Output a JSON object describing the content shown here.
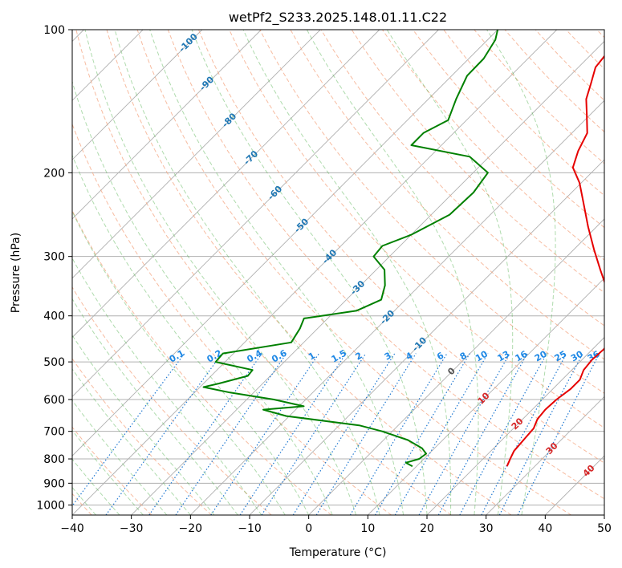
{
  "chart_data": {
    "type": "line",
    "subtype": "skew-t log-p diagram",
    "title": "wetPf2_S233.2025.148.01.11.C22",
    "xlabel": "Temperature (°C)",
    "ylabel": "Pressure (hPa)",
    "xlim": [
      -40,
      50
    ],
    "ylim": [
      1050,
      100
    ],
    "y_scale": "log",
    "x_ticks": [
      "−40",
      "−30",
      "−20",
      "−10",
      "0",
      "10",
      "20",
      "30",
      "40",
      "50"
    ],
    "y_ticks": [
      100,
      200,
      300,
      400,
      500,
      600,
      700,
      800,
      900,
      1000
    ],
    "grid": true,
    "series": [
      {
        "color": "#e60000",
        "points": [
          [
            829,
            25.3
          ],
          [
            800,
            24.6
          ],
          [
            770,
            23.9
          ],
          [
            720,
            23.6
          ],
          [
            690,
            23.4
          ],
          [
            660,
            22.5
          ],
          [
            630,
            22.2
          ],
          [
            600,
            22.4
          ],
          [
            570,
            23.0
          ],
          [
            545,
            23.0
          ],
          [
            520,
            22.0
          ],
          [
            495,
            21.7
          ],
          [
            470,
            21.9
          ],
          [
            440,
            21.4
          ],
          [
            410,
            19.4
          ],
          [
            380,
            15.9
          ],
          [
            350,
            12.1
          ],
          [
            320,
            7.9
          ],
          [
            290,
            3.4
          ],
          [
            260,
            -1.4
          ],
          [
            230,
            -6.5
          ],
          [
            210,
            -10.3
          ],
          [
            195,
            -14.0
          ],
          [
            180,
            -15.9
          ],
          [
            165,
            -17.4
          ],
          [
            150,
            -20.8
          ],
          [
            140,
            -23.3
          ],
          [
            130,
            -25.1
          ],
          [
            120,
            -27.1
          ],
          [
            110,
            -27.7
          ],
          [
            100,
            -27.3
          ]
        ]
      },
      {
        "color": "#008000",
        "points": [
          [
            829,
            9.3
          ],
          [
            815,
            7.6
          ],
          [
            800,
            9.2
          ],
          [
            780,
            9.5
          ],
          [
            760,
            7.9
          ],
          [
            730,
            4.1
          ],
          [
            700,
            -1.7
          ],
          [
            680,
            -6.6
          ],
          [
            650,
            -20.5
          ],
          [
            630,
            -25.5
          ],
          [
            620,
            -19.2
          ],
          [
            600,
            -25.4
          ],
          [
            580,
            -34.0
          ],
          [
            565,
            -39.4
          ],
          [
            555,
            -37.4
          ],
          [
            535,
            -33.8
          ],
          [
            520,
            -34.0
          ],
          [
            500,
            -41.6
          ],
          [
            480,
            -41.8
          ],
          [
            455,
            -32.1
          ],
          [
            425,
            -33.0
          ],
          [
            405,
            -34.0
          ],
          [
            390,
            -26.4
          ],
          [
            370,
            -24.1
          ],
          [
            345,
            -25.9
          ],
          [
            320,
            -28.6
          ],
          [
            300,
            -32.7
          ],
          [
            285,
            -33.0
          ],
          [
            270,
            -30.0
          ],
          [
            245,
            -26.9
          ],
          [
            220,
            -26.6
          ],
          [
            200,
            -27.5
          ],
          [
            185,
            -33.3
          ],
          [
            175,
            -45.1
          ],
          [
            165,
            -45.1
          ],
          [
            155,
            -43.1
          ],
          [
            140,
            -45.3
          ],
          [
            125,
            -47.4
          ],
          [
            115,
            -47.5
          ],
          [
            105,
            -48.7
          ],
          [
            100,
            -50.0
          ]
        ]
      }
    ],
    "dry_adiabat_color": "#f4a582",
    "moist_adiabat_color": "#4daf4a",
    "mixing_ratio_color": "#1f78d1",
    "isotherm_labels": [
      "-100",
      "-90",
      "-80",
      "-70",
      "-60",
      "-50",
      "-40",
      "-30",
      "-20",
      "-10",
      "0",
      "10",
      "20",
      "30",
      "40"
    ],
    "mixing_ratio_labels": [
      "0.1",
      "0.2",
      "0.4",
      "0.6",
      "1",
      "1.5",
      "2",
      "3",
      "4",
      "6",
      "8",
      "10",
      "13",
      "16",
      "20",
      "25",
      "30",
      "36"
    ]
  }
}
